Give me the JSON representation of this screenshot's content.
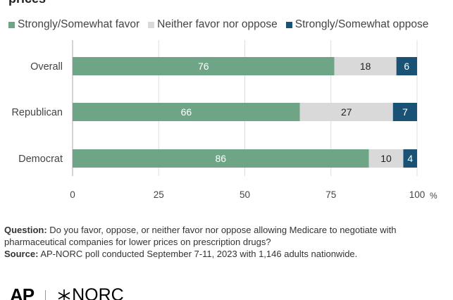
{
  "title_fragment": "prices",
  "colors": {
    "favor": "#6fa587",
    "neither": "#d9d9d9",
    "oppose": "#1a5276",
    "axis": "#aaaaaa",
    "grid": "#dddddd"
  },
  "legend": [
    {
      "label": "Strongly/Somewhat favor",
      "color": "#6fa587"
    },
    {
      "label": "Neither favor nor oppose",
      "color": "#d9d9d9"
    },
    {
      "label": "Strongly/Somewhat oppose",
      "color": "#1a5276"
    }
  ],
  "chart_data": {
    "type": "bar",
    "orientation": "horizontal",
    "stacked": true,
    "categories": [
      "Overall",
      "Republican",
      "Democrat"
    ],
    "series": [
      {
        "name": "Strongly/Somewhat favor",
        "values": [
          76,
          66,
          86
        ]
      },
      {
        "name": "Neither favor nor oppose",
        "values": [
          18,
          27,
          10
        ]
      },
      {
        "name": "Strongly/Somewhat oppose",
        "values": [
          6,
          7,
          4
        ]
      }
    ],
    "xlim": [
      0,
      100
    ],
    "xticks": [
      0,
      25,
      50,
      75,
      100
    ],
    "xunit": "%",
    "grid": true,
    "legend_position": "top"
  },
  "notes": {
    "question_label": "Question:",
    "question_text": "Do you favor, oppose, or neither favor nor oppose allowing Medicare to negotiate with pharmaceutical companies for lower prices on prescription drugs?",
    "source_label": "Source:",
    "source_text": "AP-NORC poll conducted September 7-11, 2023 with 1,146 adults nationwide."
  },
  "logos": {
    "ap": "AP",
    "norc": "NORC"
  }
}
